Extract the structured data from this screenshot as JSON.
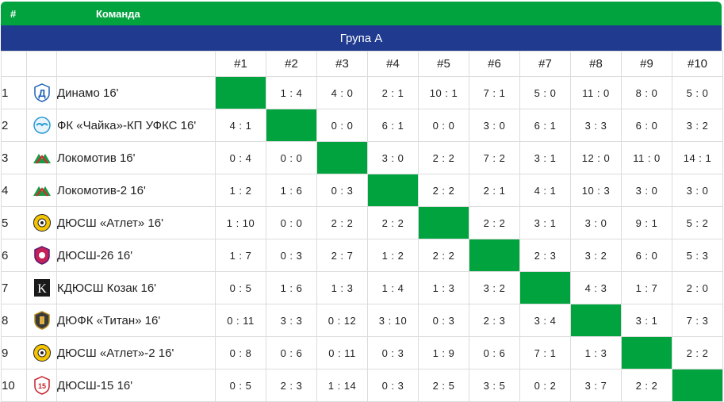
{
  "header": {
    "hash_label": "#",
    "team_label": "Команда",
    "group_label": "Група А"
  },
  "columns": [
    "#1",
    "#2",
    "#3",
    "#4",
    "#5",
    "#6",
    "#7",
    "#8",
    "#9",
    "#10"
  ],
  "colors": {
    "green": "#00a33e",
    "blue": "#1f3a8f"
  },
  "teams": [
    {
      "num": "1",
      "name": "Динамо 16'",
      "logo_icon": "dynamo-logo-icon",
      "scores": [
        "",
        "1 : 4",
        "4 : 0",
        "2 : 1",
        "10 : 1",
        "7 : 1",
        "5 : 0",
        "11 : 0",
        "8 : 0",
        "5 : 0"
      ]
    },
    {
      "num": "2",
      "name": "ФК «Чайка»-КП УФКС 16'",
      "logo_icon": "chaika-logo-icon",
      "scores": [
        "4 : 1",
        "",
        "0 : 0",
        "6 : 1",
        "0 : 0",
        "3 : 0",
        "6 : 1",
        "3 : 3",
        "6 : 0",
        "3 : 2"
      ]
    },
    {
      "num": "3",
      "name": "Локомотив 16'",
      "logo_icon": "lokomotiv-logo-icon",
      "scores": [
        "0 : 4",
        "0 : 0",
        "",
        "3 : 0",
        "2 : 2",
        "7 : 2",
        "3 : 1",
        "12 : 0",
        "11 : 0",
        "14 : 1"
      ]
    },
    {
      "num": "4",
      "name": "Локомотив-2 16'",
      "logo_icon": "lokomotiv-logo-icon",
      "scores": [
        "1 : 2",
        "1 : 6",
        "0 : 3",
        "",
        "2 : 2",
        "2 : 1",
        "4 : 1",
        "10 : 3",
        "3 : 0",
        "3 : 0"
      ]
    },
    {
      "num": "5",
      "name": "ДЮСШ «Атлет» 16'",
      "logo_icon": "atlet-logo-icon",
      "scores": [
        "1 : 10",
        "0 : 0",
        "2 : 2",
        "2 : 2",
        "",
        "2 : 2",
        "3 : 1",
        "3 : 0",
        "9 : 1",
        "5 : 2"
      ]
    },
    {
      "num": "6",
      "name": "ДЮСШ-26 16'",
      "logo_icon": "dyussh26-logo-icon",
      "scores": [
        "1 : 7",
        "0 : 3",
        "2 : 7",
        "1 : 2",
        "2 : 2",
        "",
        "2 : 3",
        "3 : 2",
        "6 : 0",
        "5 : 3"
      ]
    },
    {
      "num": "7",
      "name": "КДЮСШ Козак 16'",
      "logo_icon": "kozak-logo-icon",
      "scores": [
        "0 : 5",
        "1 : 6",
        "1 : 3",
        "1 : 4",
        "1 : 3",
        "3 : 2",
        "",
        "4 : 3",
        "1 : 7",
        "2 : 0"
      ]
    },
    {
      "num": "8",
      "name": "ДЮФК «Титан» 16'",
      "logo_icon": "titan-logo-icon",
      "scores": [
        "0 : 11",
        "3 : 3",
        "0 : 12",
        "3 : 10",
        "0 : 3",
        "2 : 3",
        "3 : 4",
        "",
        "3 : 1",
        "7 : 3"
      ]
    },
    {
      "num": "9",
      "name": "ДЮСШ «Атлет»-2 16'",
      "logo_icon": "atlet-logo-icon",
      "scores": [
        "0 : 8",
        "0 : 6",
        "0 : 11",
        "0 : 3",
        "1 : 9",
        "0 : 6",
        "7 : 1",
        "1 : 3",
        "",
        "2 : 2"
      ]
    },
    {
      "num": "10",
      "name": "ДЮСШ-15 16'",
      "logo_icon": "dyussh15-logo-icon",
      "scores": [
        "0 : 5",
        "2 : 3",
        "1 : 14",
        "0 : 3",
        "2 : 5",
        "3 : 5",
        "0 : 2",
        "3 : 7",
        "2 : 2",
        ""
      ]
    }
  ]
}
